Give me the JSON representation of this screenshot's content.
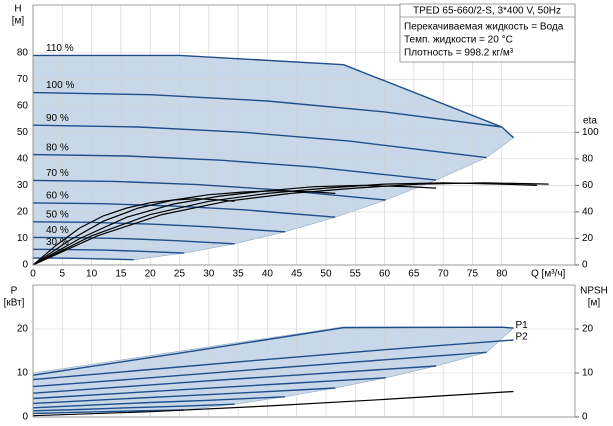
{
  "chart_data": [
    {
      "type": "line",
      "ylabel": "H",
      "yunit": "[м]",
      "y2label": "eta",
      "xlabel": "Q [м³/ч]",
      "xlim": [
        0,
        92.5
      ],
      "xticks": [
        0,
        5,
        10,
        15,
        20,
        25,
        30,
        35,
        40,
        45,
        50,
        55,
        60,
        65,
        70,
        75,
        80
      ],
      "ylim": [
        0,
        98
      ],
      "yticks": [
        0,
        10,
        20,
        30,
        40,
        50,
        60,
        70,
        80
      ],
      "y2lim": [
        0,
        196
      ],
      "y2ticks": [
        0,
        20,
        40,
        60,
        80,
        100
      ],
      "grid": true,
      "envelope": {
        "color": "#c9d8e8",
        "x": [
          0,
          25,
          53,
          80,
          82,
          77.4,
          68.8,
          60.2,
          51.6,
          43,
          34.4,
          25.8,
          17.2,
          8,
          0
        ],
        "values": [
          79,
          79,
          75.5,
          52,
          48,
          40.5,
          32,
          24.5,
          18,
          12.5,
          8,
          4.5,
          2,
          2.5,
          2.6
        ]
      },
      "series": [
        {
          "name": "110 %",
          "color": "#1f4e8c",
          "x": [
            0,
            25,
            53,
            80,
            82
          ],
          "values": [
            79,
            79,
            75.5,
            52,
            48
          ]
        },
        {
          "name": "100 %",
          "color": "#1f4e8c",
          "x": [
            0,
            20,
            40,
            60,
            80
          ],
          "values": [
            65,
            64.2,
            61.8,
            57.7,
            52
          ]
        },
        {
          "name": "90 %",
          "color": "#1f4e8c",
          "x": [
            0,
            18,
            36,
            54,
            77.4
          ],
          "values": [
            52.7,
            52,
            50,
            46.7,
            40.5
          ]
        },
        {
          "name": "80 %",
          "color": "#1f4e8c",
          "x": [
            0,
            16,
            32,
            48,
            68.8
          ],
          "values": [
            41.6,
            41.1,
            39.5,
            36.9,
            32
          ]
        },
        {
          "name": "70 %",
          "color": "#1f4e8c",
          "x": [
            0,
            14,
            28,
            42,
            60.2
          ],
          "values": [
            31.9,
            31.5,
            30.3,
            28.3,
            24.5
          ]
        },
        {
          "name": "60 %",
          "color": "#1f4e8c",
          "x": [
            0,
            12,
            24,
            36,
            51.6
          ],
          "values": [
            23.4,
            23.1,
            22.2,
            20.8,
            18
          ]
        },
        {
          "name": "50 %",
          "color": "#1f4e8c",
          "x": [
            0,
            10,
            20,
            30,
            43
          ],
          "values": [
            16.3,
            16.1,
            15.4,
            14.4,
            12.5
          ]
        },
        {
          "name": "40 %",
          "color": "#1f4e8c",
          "x": [
            0,
            8,
            16,
            24,
            34.4
          ],
          "values": [
            10.4,
            10.3,
            9.9,
            9.2,
            8
          ]
        },
        {
          "name": "30 %",
          "color": "#1f4e8c",
          "x": [
            0,
            6,
            12,
            18,
            25.8
          ],
          "values": [
            5.9,
            5.8,
            5.6,
            5.2,
            4.5
          ]
        },
        {
          "color": "#1f4e8c",
          "x": [
            0,
            4,
            8,
            12,
            17.2
          ],
          "values": [
            2.6,
            2.6,
            2.5,
            2.3,
            2
          ]
        },
        {
          "color": "#000000",
          "axis": "y2",
          "x": [
            0,
            11,
            22,
            33,
            44,
            55,
            66,
            77,
            88
          ],
          "values": [
            0,
            22,
            38,
            48,
            54,
            58,
            61,
            62,
            61
          ]
        },
        {
          "color": "#000000",
          "axis": "y2",
          "x": [
            0,
            10,
            20,
            30,
            40,
            50,
            60,
            70,
            80,
            86
          ],
          "values": [
            0,
            22,
            38,
            48,
            54,
            58,
            61,
            62,
            61,
            60
          ]
        },
        {
          "color": "#000000",
          "axis": "y2",
          "x": [
            0,
            8,
            16,
            24,
            32,
            40,
            48,
            56,
            64,
            68.8
          ],
          "values": [
            0,
            20,
            36,
            46,
            52,
            56,
            59,
            60,
            59,
            58
          ]
        },
        {
          "color": "#000000",
          "axis": "y2",
          "x": [
            0,
            6,
            12,
            18,
            24,
            30,
            36,
            42,
            48,
            51.6
          ],
          "values": [
            0,
            18,
            33,
            43,
            49,
            53,
            55,
            56,
            55,
            54
          ]
        },
        {
          "color": "#000000",
          "axis": "y2",
          "x": [
            0,
            4,
            8,
            12,
            16,
            20,
            24,
            28,
            32,
            34.4
          ],
          "values": [
            0,
            15,
            28,
            37,
            43,
            47,
            49,
            50,
            49,
            48
          ]
        }
      ]
    },
    {
      "type": "line",
      "ylabel": "P",
      "yunit": "[кВт]",
      "y2label": "NPSH",
      "y2unit": "[м]",
      "xlim": [
        0,
        92.5
      ],
      "xticks": [
        0,
        5,
        10,
        15,
        20,
        25,
        30,
        35,
        40,
        45,
        50,
        55,
        60,
        65,
        70,
        75,
        80
      ],
      "ylim": [
        0,
        30
      ],
      "yticks": [
        0,
        10,
        20
      ],
      "y2lim": [
        0,
        30
      ],
      "y2ticks": [
        0,
        10,
        20
      ],
      "grid": true,
      "envelope": {
        "color": "#c9d8e8",
        "x": [
          0,
          53,
          80,
          82,
          77.4,
          68.8,
          60.2,
          51.6,
          43,
          34.4,
          25.8,
          0
        ],
        "values": [
          10,
          20.5,
          20.5,
          20.2,
          14.7,
          11.6,
          8.9,
          6.6,
          4.6,
          2.9,
          1.6,
          0.8
        ]
      },
      "series": [
        {
          "name": "P1",
          "color": "#1f4e8c",
          "x": [
            0,
            25,
            53,
            80,
            82
          ],
          "values": [
            9.5,
            14.5,
            20.3,
            20.4,
            20.2
          ]
        },
        {
          "name": "P2",
          "color": "#1f4e8c",
          "x": [
            0,
            20,
            40,
            60,
            82
          ],
          "values": [
            8.5,
            10.8,
            13.1,
            15.3,
            17.5
          ]
        },
        {
          "color": "#1f4e8c",
          "x": [
            0,
            18,
            36,
            54,
            77.4
          ],
          "values": [
            6.9,
            8.7,
            10.6,
            12.4,
            14.7
          ]
        },
        {
          "color": "#1f4e8c",
          "x": [
            0,
            16,
            32,
            48,
            68.8
          ],
          "values": [
            5.4,
            6.9,
            8.4,
            9.8,
            11.6
          ]
        },
        {
          "color": "#1f4e8c",
          "x": [
            0,
            14,
            28,
            42,
            60.2
          ],
          "values": [
            4.2,
            5.3,
            6.4,
            7.5,
            8.9
          ]
        },
        {
          "color": "#1f4e8c",
          "x": [
            0,
            12,
            24,
            36,
            51.6
          ],
          "values": [
            3.1,
            3.9,
            4.7,
            5.5,
            6.6
          ]
        },
        {
          "color": "#1f4e8c",
          "x": [
            0,
            10,
            20,
            30,
            43
          ],
          "values": [
            2.1,
            2.7,
            3.3,
            3.8,
            4.6
          ]
        },
        {
          "color": "#1f4e8c",
          "x": [
            0,
            8,
            16,
            24,
            34.4
          ],
          "values": [
            1.4,
            1.7,
            2.1,
            2.4,
            2.9
          ]
        },
        {
          "color": "#1f4e8c",
          "x": [
            0,
            6,
            12,
            18,
            25.8
          ],
          "values": [
            0.8,
            1,
            1.2,
            1.4,
            1.6
          ]
        },
        {
          "color": "#000000",
          "axis": "y2",
          "x": [
            0,
            20,
            40,
            60,
            82
          ],
          "values": [
            0.3,
            1.2,
            2.5,
            4,
            5.8
          ]
        }
      ]
    }
  ],
  "info": {
    "title": "TPED 65-660/2-S, 3*400 V, 50Hz",
    "lines": [
      "Перекачиваемая жидкость = Вода",
      "Темп. жидкости = 20 °C",
      "Плотность = 998.2 кг/м³"
    ]
  }
}
